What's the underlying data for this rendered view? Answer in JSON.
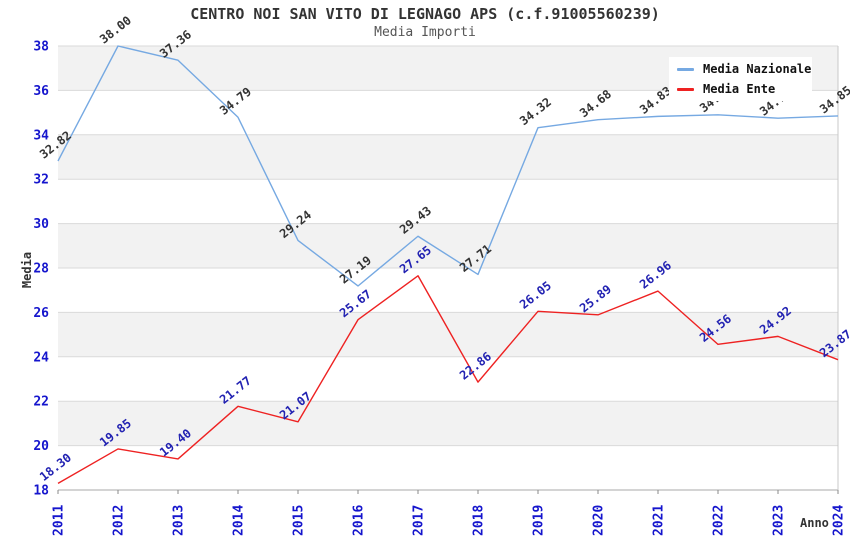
{
  "chart_data": {
    "type": "line",
    "title": "CENTRO NOI SAN VITO DI LEGNAGO APS (c.f.91005560239)",
    "subtitle": "Media Importi",
    "xlabel": "Anno",
    "ylabel": "Media",
    "ylim": [
      18,
      38
    ],
    "y_ticks": [
      18,
      20,
      22,
      24,
      26,
      28,
      30,
      32,
      34,
      36,
      38
    ],
    "categories": [
      "2011",
      "2012",
      "2013",
      "2014",
      "2015",
      "2016",
      "2017",
      "2018",
      "2019",
      "2020",
      "2021",
      "2022",
      "2023",
      "2024"
    ],
    "series": [
      {
        "name": "Media Nazionale",
        "color": "#76a9e2",
        "label_color": "#333333",
        "values": [
          32.82,
          38.0,
          37.36,
          34.79,
          29.24,
          27.19,
          29.43,
          27.71,
          34.32,
          34.68,
          34.83,
          34.9,
          34.75,
          34.85
        ]
      },
      {
        "name": "Media Ente",
        "color": "#ee2222",
        "label_color": "#2222b2",
        "values": [
          18.3,
          19.85,
          19.4,
          21.77,
          21.07,
          25.67,
          27.65,
          22.86,
          26.05,
          25.89,
          26.96,
          24.56,
          24.92,
          23.87
        ]
      }
    ],
    "legend_position": "top-right",
    "grid": "horizontal-bands",
    "band_color": "#f2f2f2",
    "gridline_color": "#dadada",
    "axis_tick_label_color": "#1515cd",
    "notes": "2022 and 2023 values of Media Nazionale are partially hidden behind the legend box"
  }
}
